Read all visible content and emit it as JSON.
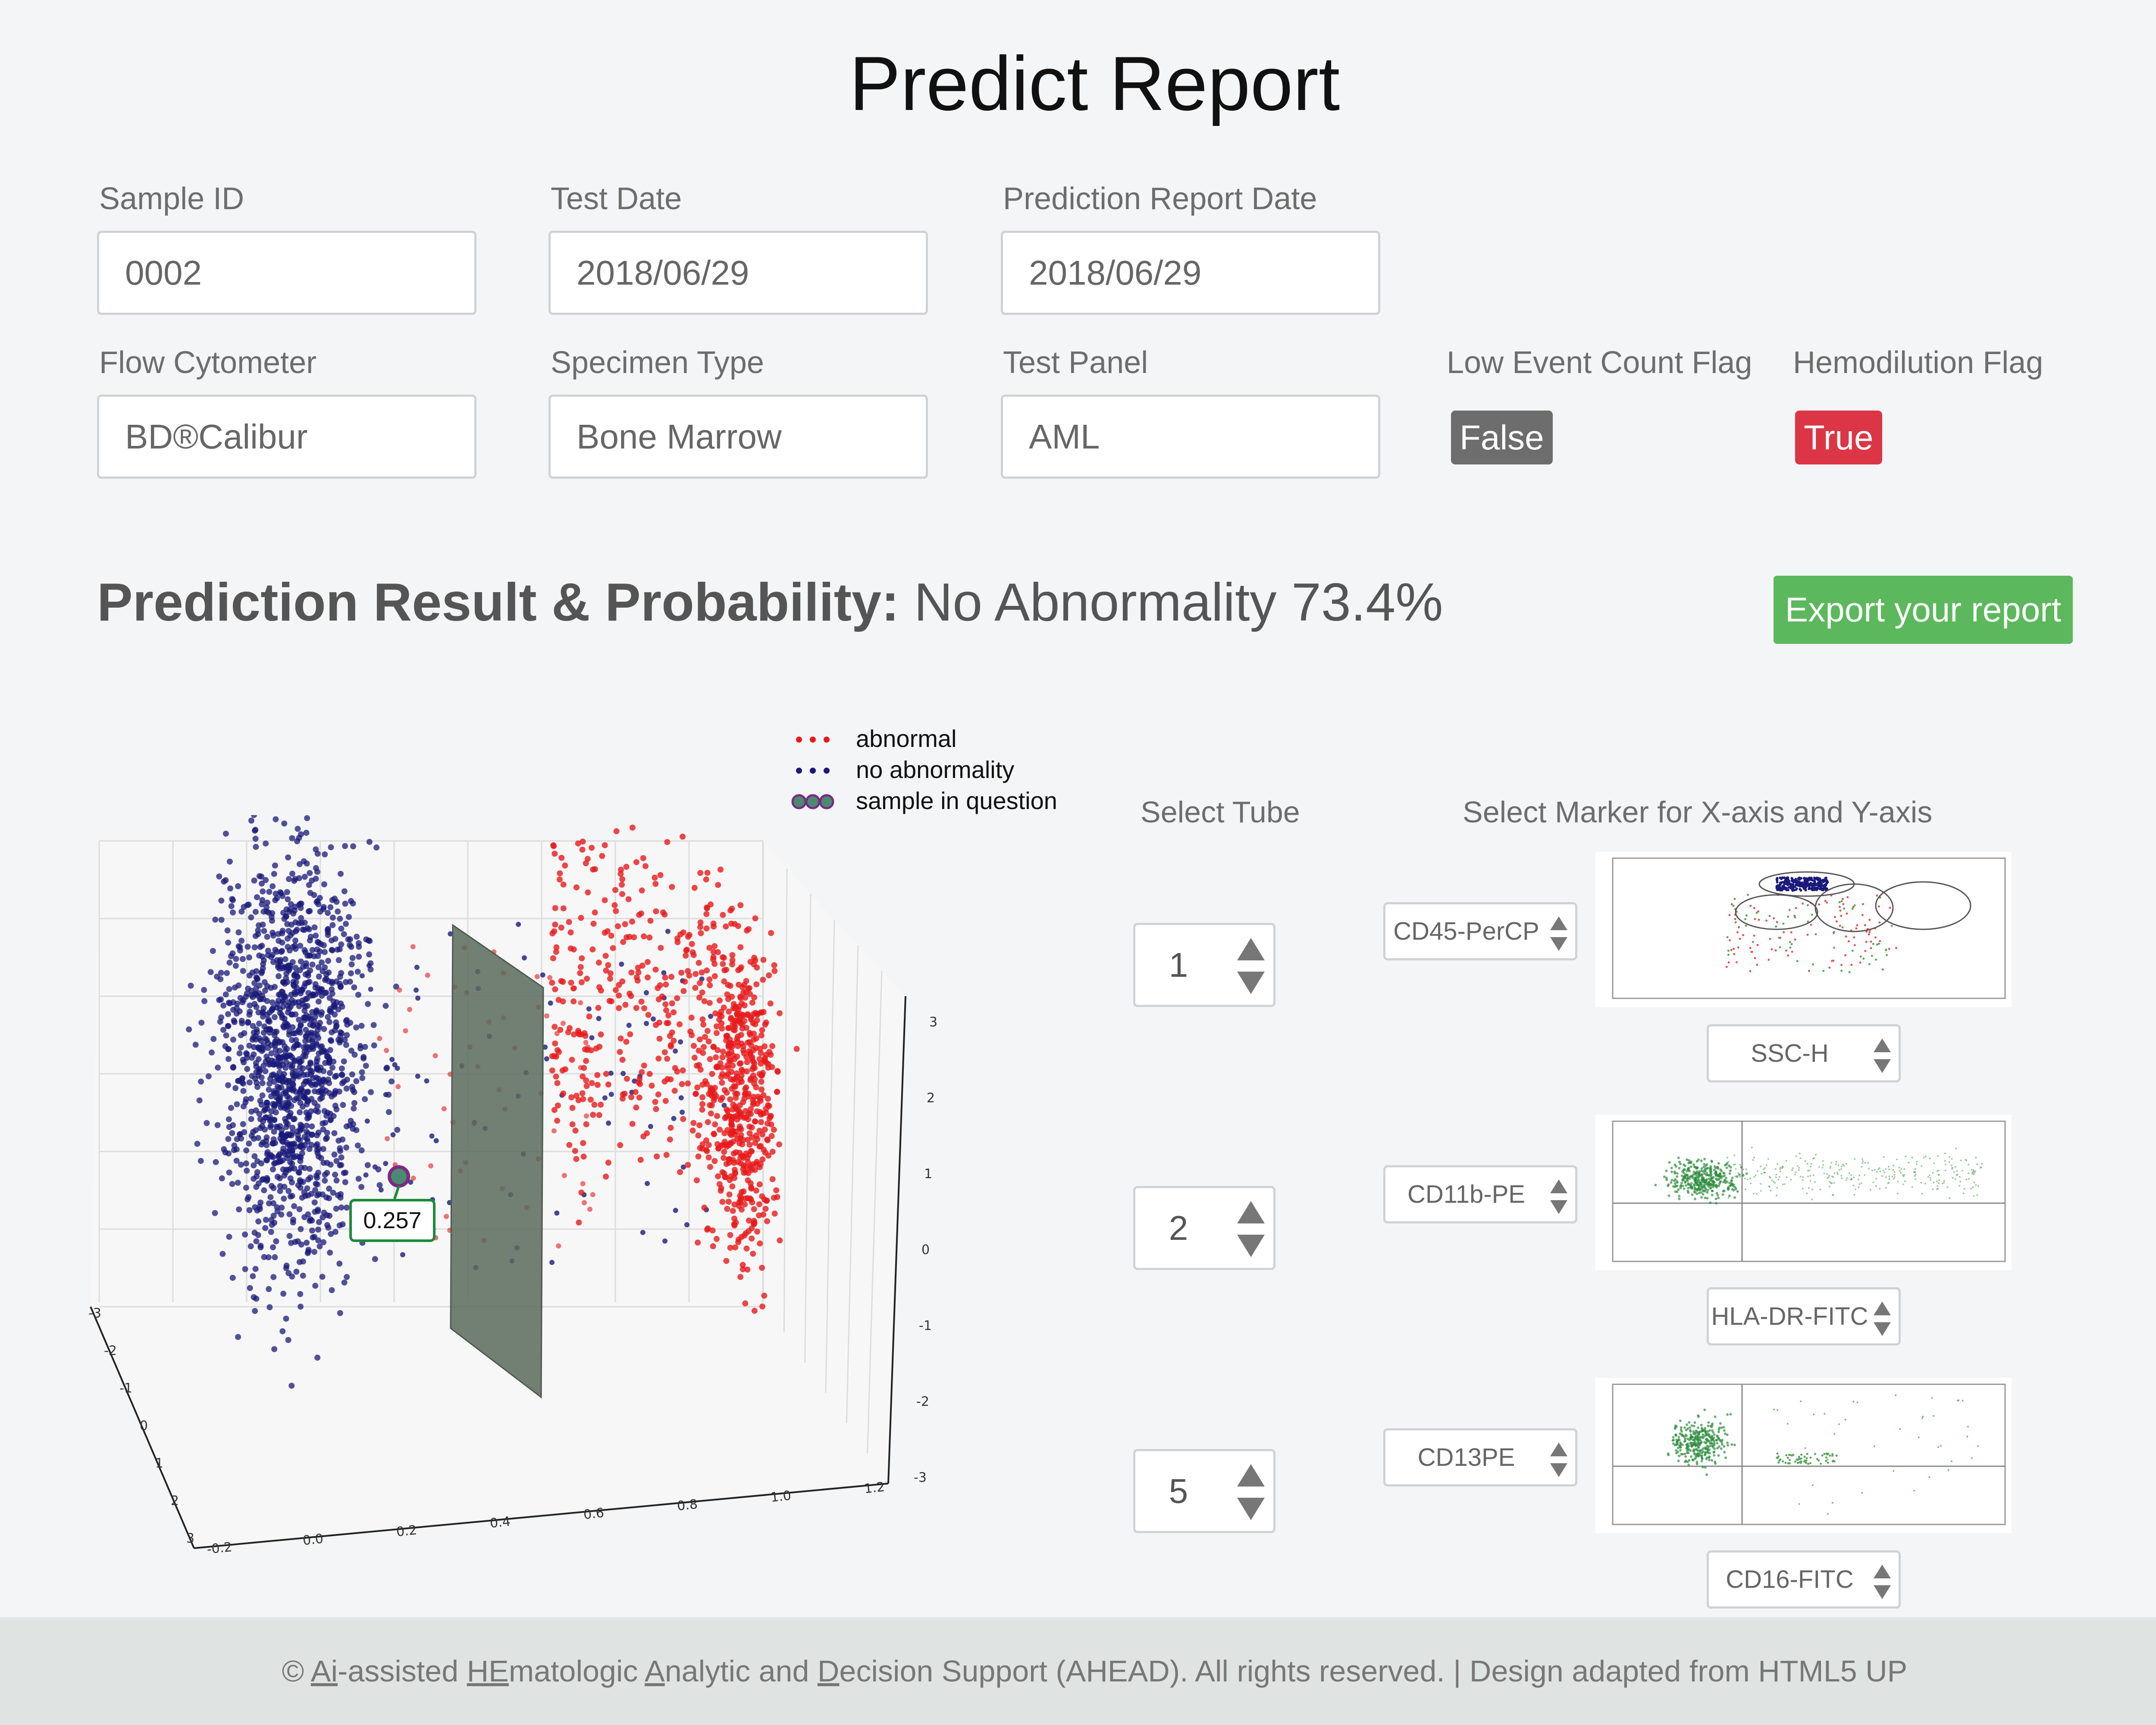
{
  "page_title": "Predict Report",
  "fields": {
    "sample_id": {
      "label": "Sample ID",
      "value": "0002"
    },
    "test_date": {
      "label": "Test Date",
      "value": "2018/06/29"
    },
    "prediction_date": {
      "label": "Prediction Report Date",
      "value": "2018/06/29"
    },
    "flow_cytometer": {
      "label": "Flow Cytometer",
      "value": "BD®Calibur"
    },
    "specimen_type": {
      "label": "Specimen Type",
      "value": "Bone Marrow"
    },
    "test_panel": {
      "label": "Test Panel",
      "value": "AML"
    }
  },
  "flags": {
    "low_event": {
      "label": "Low Event Count Flag",
      "value": "False",
      "color": "#6d6d6d"
    },
    "hemodilution": {
      "label": "Hemodilution Flag",
      "value": "True",
      "color": "#dc3545"
    }
  },
  "result": {
    "heading": "Prediction Result & Probability:",
    "value": "No Abnormality 73.4%"
  },
  "export_label": "Export your report",
  "plot": {
    "legend": [
      {
        "label": "abnormal",
        "color": "#e8191a"
      },
      {
        "label": "no abnormality",
        "color": "#1a1a7a"
      },
      {
        "label": "sample in question",
        "color": "#4b8a6f"
      }
    ],
    "tooltip": "0.257",
    "x_ticks": [
      "-0.2",
      "0.0",
      "0.2",
      "0.4",
      "0.6",
      "0.8",
      "1.0",
      "1.2"
    ],
    "y_ticks": [
      "-3",
      "-2",
      "-1",
      "0",
      "1",
      "2",
      "3"
    ],
    "z_ticks": [
      "3",
      "2",
      "1",
      "0",
      "-1",
      "-2",
      "-3"
    ]
  },
  "tubes": {
    "select_tube_label": "Select Tube",
    "select_marker_label": "Select Marker for X-axis and Y-axis",
    "rows": [
      {
        "tube": "1",
        "y_marker": "CD45-PerCP",
        "x_marker": "SSC-H"
      },
      {
        "tube": "2",
        "y_marker": "CD11b-PE",
        "x_marker": "HLA-DR-FITC"
      },
      {
        "tube": "5",
        "y_marker": "CD13PE",
        "x_marker": "CD16-FITC"
      }
    ]
  },
  "footer": {
    "copyright": "©",
    "parts": [
      "Ai",
      "-assisted ",
      "HE",
      "matologic ",
      "A",
      "nalytic and ",
      "D",
      "ecision Support (AHEAD). All rights reserved. | Design adapted from HTML5 UP"
    ]
  }
}
